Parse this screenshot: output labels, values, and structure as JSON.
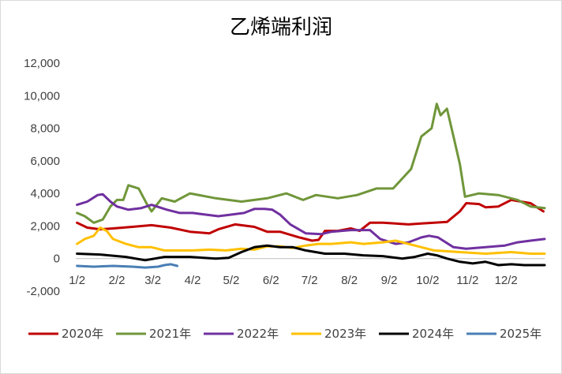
{
  "chart_data": {
    "type": "line",
    "title": "乙烯端利润",
    "xlabel": "",
    "ylabel": "",
    "ylim": [
      -2000,
      12000
    ],
    "yticks": [
      -2000,
      0,
      2000,
      4000,
      6000,
      8000,
      10000,
      12000
    ],
    "ytick_labels": [
      "-2,000",
      "0",
      "2,000",
      "4,000",
      "6,000",
      "8,000",
      "10,000",
      "12,000"
    ],
    "xlim": [
      1,
      366
    ],
    "xticks": [
      2,
      33,
      61,
      92,
      122,
      153,
      183,
      214,
      245,
      275,
      306,
      336
    ],
    "xtick_labels": [
      "1/2",
      "2/2",
      "3/2",
      "4/2",
      "5/2",
      "6/2",
      "7/2",
      "8/2",
      "9/2",
      "10/2",
      "11/2",
      "12/2"
    ],
    "grid": false,
    "legend_position": "bottom",
    "series": [
      {
        "name": "2020年",
        "color": "#c00000",
        "x": [
          2,
          10,
          20,
          30,
          45,
          60,
          75,
          90,
          105,
          112,
          125,
          140,
          150,
          160,
          175,
          185,
          190,
          195,
          205,
          215,
          222,
          230,
          240,
          250,
          260,
          270,
          290,
          300,
          305,
          315,
          320,
          330,
          340,
          355,
          365
        ],
        "y": [
          2200,
          1900,
          1800,
          1850,
          1950,
          2050,
          1900,
          1650,
          1550,
          1800,
          2100,
          1950,
          1650,
          1650,
          1300,
          1100,
          1150,
          1700,
          1700,
          1850,
          1700,
          2200,
          2200,
          2150,
          2100,
          2150,
          2250,
          2900,
          3400,
          3350,
          3150,
          3200,
          3600,
          3400,
          2900
        ]
      },
      {
        "name": "2021年",
        "color": "#70963a",
        "x": [
          2,
          8,
          15,
          22,
          28,
          33,
          38,
          42,
          50,
          56,
          60,
          68,
          78,
          90,
          110,
          130,
          150,
          165,
          178,
          188,
          205,
          220,
          235,
          248,
          262,
          270,
          278,
          282,
          285,
          290,
          295,
          300,
          304,
          315,
          330,
          345,
          355,
          366
        ],
        "y": [
          2800,
          2600,
          2200,
          2400,
          3200,
          3600,
          3600,
          4500,
          4300,
          3400,
          2900,
          3700,
          3500,
          4000,
          3700,
          3500,
          3700,
          4000,
          3600,
          3900,
          3700,
          3900,
          4300,
          4300,
          5500,
          7500,
          8000,
          9500,
          8800,
          9200,
          7500,
          5800,
          3800,
          4000,
          3900,
          3600,
          3200,
          3100
        ]
      },
      {
        "name": "2022年",
        "color": "#7030a0",
        "x": [
          2,
          10,
          18,
          22,
          28,
          33,
          42,
          52,
          60,
          72,
          82,
          92,
          102,
          112,
          122,
          132,
          140,
          148,
          154,
          160,
          168,
          180,
          192,
          200,
          215,
          230,
          238,
          250,
          260,
          270,
          276,
          283,
          295,
          305,
          320,
          335,
          345,
          355,
          366
        ],
        "y": [
          3300,
          3500,
          3900,
          3950,
          3500,
          3200,
          3000,
          3100,
          3300,
          3000,
          2800,
          2800,
          2700,
          2600,
          2700,
          2800,
          3050,
          3050,
          3000,
          2700,
          2100,
          1550,
          1500,
          1650,
          1750,
          1750,
          1200,
          900,
          1000,
          1300,
          1400,
          1300,
          700,
          600,
          700,
          800,
          1000,
          1100,
          1200
        ]
      },
      {
        "name": "2023年",
        "color": "#ffc000",
        "x": [
          2,
          8,
          15,
          20,
          25,
          30,
          40,
          50,
          60,
          70,
          80,
          92,
          105,
          118,
          130,
          140,
          150,
          160,
          170,
          180,
          190,
          200,
          215,
          225,
          240,
          250,
          265,
          280,
          300,
          320,
          340,
          355,
          366
        ],
        "y": [
          900,
          1200,
          1400,
          1900,
          1700,
          1200,
          900,
          700,
          700,
          500,
          500,
          500,
          550,
          500,
          600,
          550,
          750,
          750,
          650,
          800,
          900,
          900,
          1000,
          900,
          1000,
          1100,
          800,
          500,
          400,
          300,
          400,
          300,
          300
        ]
      },
      {
        "name": "2024年",
        "color": "#000000",
        "x": [
          2,
          20,
          40,
          55,
          70,
          90,
          110,
          120,
          130,
          140,
          150,
          160,
          170,
          180,
          195,
          210,
          225,
          240,
          255,
          265,
          275,
          282,
          290,
          300,
          310,
          320,
          330,
          340,
          350,
          366
        ],
        "y": [
          300,
          250,
          100,
          -100,
          100,
          100,
          0,
          50,
          400,
          700,
          800,
          700,
          700,
          500,
          300,
          300,
          200,
          150,
          0,
          100,
          300,
          200,
          0,
          -200,
          -300,
          -200,
          -400,
          -350,
          -400,
          -400
        ]
      },
      {
        "name": "2025年",
        "color": "#4a7fb5",
        "x": [
          2,
          15,
          30,
          45,
          55,
          65,
          70,
          75,
          80
        ],
        "y": [
          -450,
          -500,
          -450,
          -500,
          -550,
          -500,
          -400,
          -350,
          -450
        ]
      }
    ]
  }
}
